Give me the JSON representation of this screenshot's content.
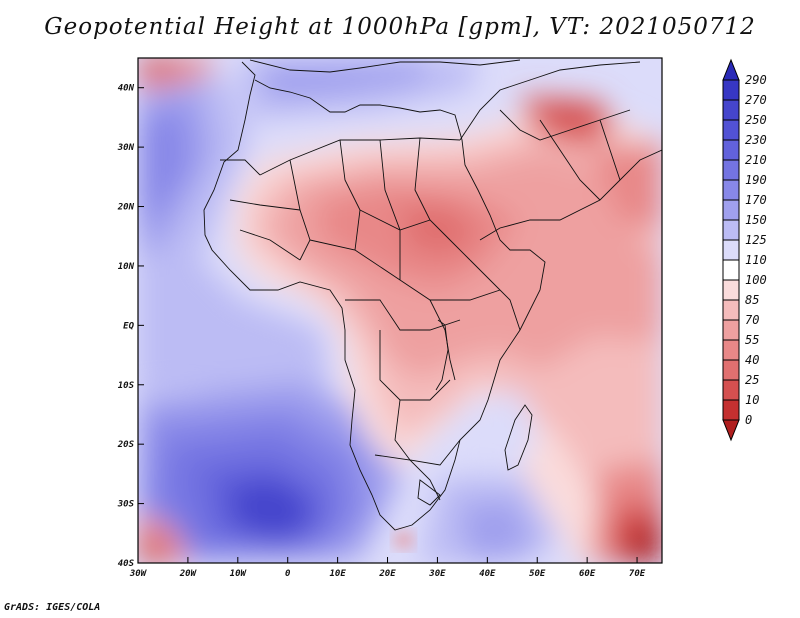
{
  "title": "Geopotential Height at 1000hPa [gpm], VT: 2021050712",
  "credit": "GrADS: IGES/COLA",
  "map": {
    "variable": "Geopotential Height",
    "level": "1000hPa",
    "units": "gpm",
    "valid_time": "2021050712",
    "lon_range": [
      -30,
      75
    ],
    "lat_range": [
      -40,
      45
    ]
  },
  "axes": {
    "lat_labels": [
      "40N",
      "30N",
      "20N",
      "10N",
      "EQ",
      "10S",
      "20S",
      "30S",
      "40S"
    ],
    "lat_values": [
      40,
      30,
      20,
      10,
      0,
      -10,
      -20,
      -30,
      -40
    ],
    "lon_labels": [
      "30W",
      "20W",
      "10W",
      "0",
      "10E",
      "20E",
      "30E",
      "40E",
      "50E",
      "60E",
      "70E"
    ],
    "lon_values": [
      -30,
      -20,
      -10,
      0,
      10,
      20,
      30,
      40,
      50,
      60,
      70
    ]
  },
  "colorbar": {
    "labels": [
      "290",
      "270",
      "250",
      "230",
      "210",
      "190",
      "170",
      "150",
      "125",
      "110",
      "100",
      "85",
      "70",
      "55",
      "40",
      "25",
      "10",
      "0"
    ],
    "colors": [
      "#2a2ab8",
      "#3737c4",
      "#4545cc",
      "#5252d4",
      "#6262dc",
      "#7474e2",
      "#8888e8",
      "#a0a0ee",
      "#bcbcf4",
      "#dcdcfa",
      "#ffffff",
      "#fadcdc",
      "#f4bcbc",
      "#eea0a0",
      "#e88888",
      "#e07070",
      "#d45050",
      "#c43030",
      "#b01e1e"
    ]
  }
}
